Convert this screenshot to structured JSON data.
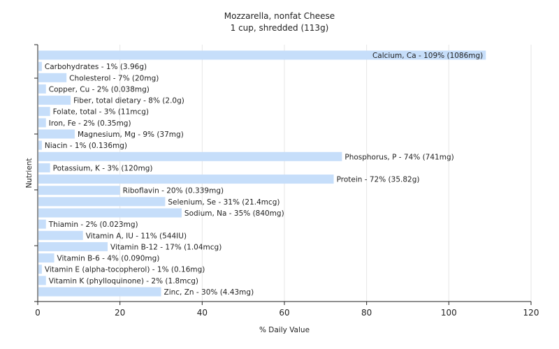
{
  "chart_data": {
    "type": "bar",
    "orientation": "horizontal",
    "title": "Mozzarella, nonfat Cheese",
    "subtitle": "1 cup, shredded (113g)",
    "xlabel": "% Daily Value",
    "ylabel": "Nutrient",
    "xlim": [
      0,
      120
    ],
    "xticks": [
      0,
      20,
      40,
      60,
      80,
      100,
      120
    ],
    "grid": true,
    "bar_color": "#c6defa",
    "categories": [
      "Calcium, Ca",
      "Carbohydrates",
      "Cholesterol",
      "Copper, Cu",
      "Fiber, total dietary",
      "Folate, total",
      "Iron, Fe",
      "Magnesium, Mg",
      "Niacin",
      "Phosphorus, P",
      "Potassium, K",
      "Protein",
      "Riboflavin",
      "Selenium, Se",
      "Sodium, Na",
      "Thiamin",
      "Vitamin A, IU",
      "Vitamin B-12",
      "Vitamin B-6",
      "Vitamin E (alpha-tocopherol)",
      "Vitamin K (phylloquinone)",
      "Zinc, Zn"
    ],
    "values": [
      109,
      1,
      7,
      2,
      8,
      3,
      2,
      9,
      1,
      74,
      3,
      72,
      20,
      31,
      35,
      2,
      11,
      17,
      4,
      1,
      2,
      30
    ],
    "labels": [
      "Calcium, Ca - 109% (1086mg)",
      "Carbohydrates - 1% (3.96g)",
      "Cholesterol - 7% (20mg)",
      "Copper, Cu - 2% (0.038mg)",
      "Fiber, total dietary - 8% (2.0g)",
      "Folate, total - 3% (11mcg)",
      "Iron, Fe - 2% (0.35mg)",
      "Magnesium, Mg - 9% (37mg)",
      "Niacin - 1% (0.136mg)",
      "Phosphorus, P - 74% (741mg)",
      "Potassium, K - 3% (120mg)",
      "Protein - 72% (35.82g)",
      "Riboflavin - 20% (0.339mg)",
      "Selenium, Se - 31% (21.4mcg)",
      "Sodium, Na - 35% (840mg)",
      "Thiamin - 2% (0.023mg)",
      "Vitamin A, IU - 11% (544IU)",
      "Vitamin B-12 - 17% (1.04mcg)",
      "Vitamin B-6 - 4% (0.090mg)",
      "Vitamin E (alpha-tocopherol) - 1% (0.16mg)",
      "Vitamin K (phylloquinone) - 2% (1.8mcg)",
      "Zinc, Zn - 30% (4.43mg)"
    ]
  }
}
